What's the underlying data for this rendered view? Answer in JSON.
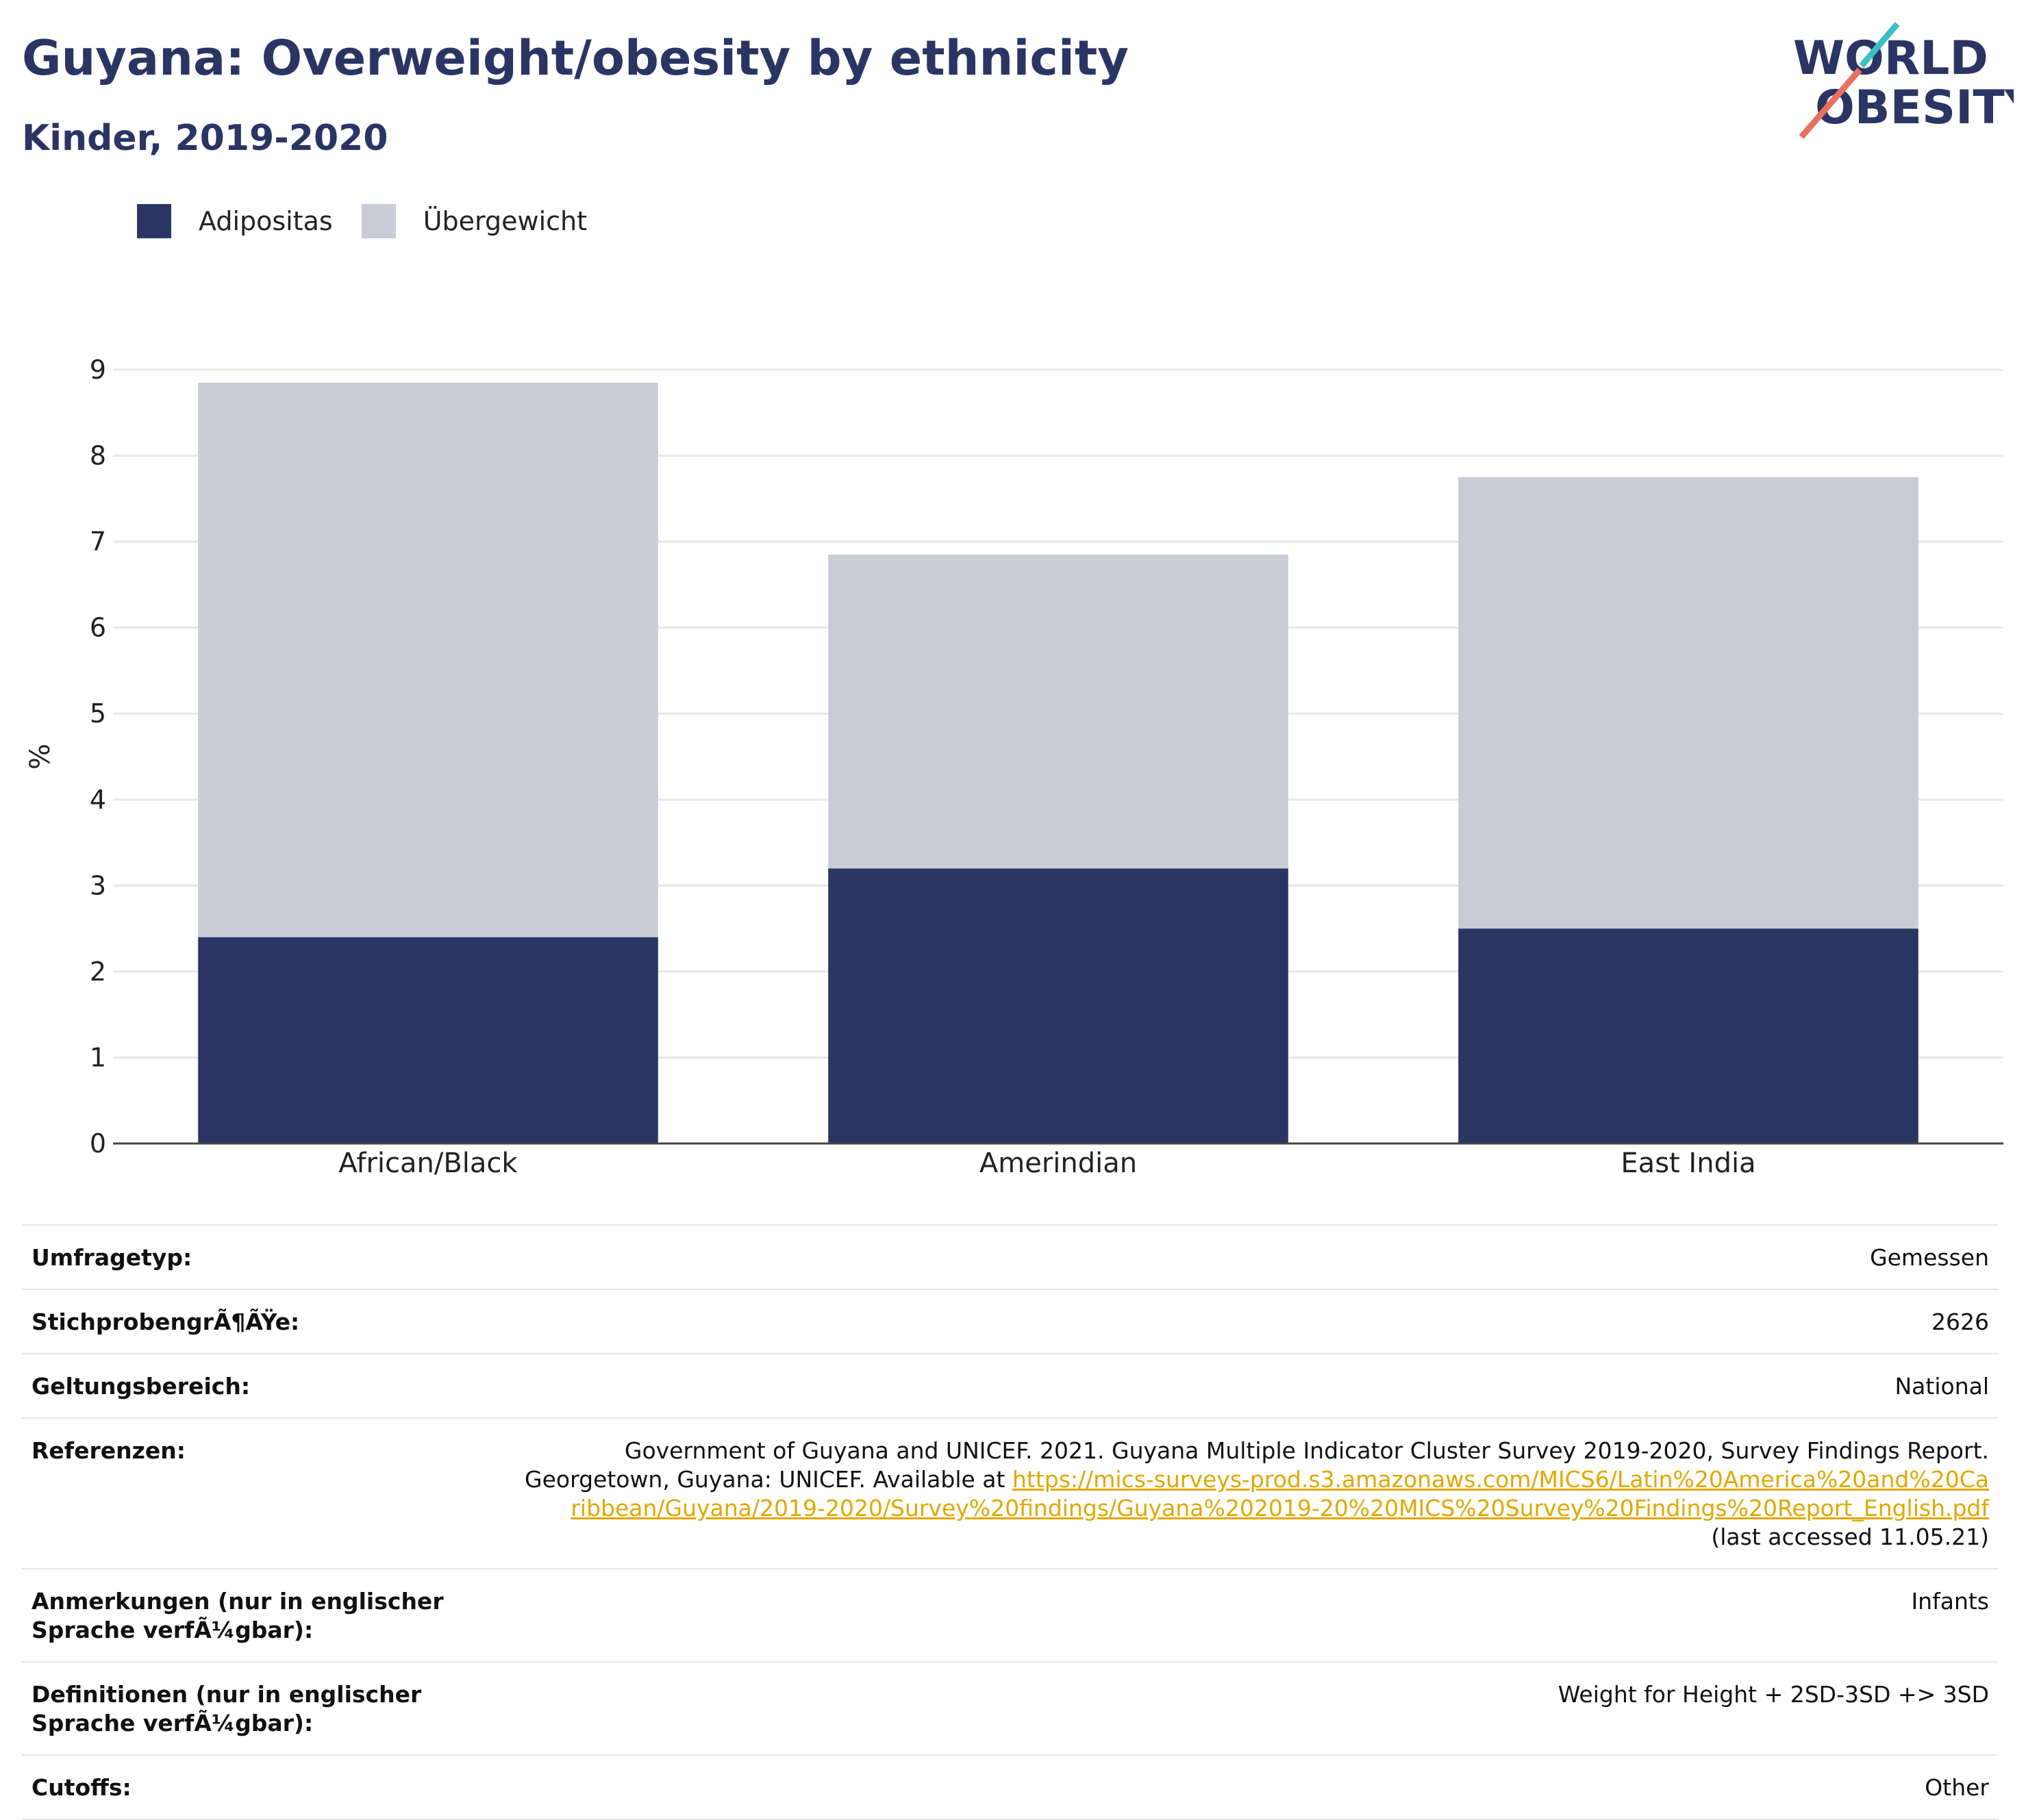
{
  "header": {
    "title": "Guyana: Overweight/obesity by ethnicity",
    "subtitle": "Kinder, 2019-2020"
  },
  "logo": {
    "line1": "WORLD",
    "line2": "OBESITY"
  },
  "legend": [
    {
      "label": "Adipositas",
      "color": "#2b3564"
    },
    {
      "label": "Übergewicht",
      "color": "#c9cbd7"
    }
  ],
  "chart_data": {
    "type": "bar",
    "stacked": true,
    "categories": [
      "African/Black",
      "Amerindian",
      "East India"
    ],
    "series": [
      {
        "name": "Adipositas",
        "values": [
          2.4,
          3.2,
          2.5
        ],
        "color": "#2b3564"
      },
      {
        "name": "Übergewicht",
        "values": [
          6.45,
          3.65,
          5.25
        ],
        "color": "#c9cbd7"
      }
    ],
    "ylabel": "%",
    "ylim": [
      0,
      9
    ],
    "yticks": [
      0,
      1,
      2,
      3,
      4,
      5,
      6,
      7,
      8,
      9
    ],
    "grid": true
  },
  "meta": {
    "rows": [
      {
        "label": "Umfragetyp:",
        "value": "Gemessen"
      },
      {
        "label": "StichprobengrÃ¶ÃŸe:",
        "value": "2626"
      },
      {
        "label": "Geltungsbereich:",
        "value": "National"
      },
      {
        "label": "Referenzen:",
        "value_pre": "Government of Guyana and UNICEF. 2021. Guyana Multiple Indicator Cluster Survey 2019-2020, Survey Findings Report. Georgetown, Guyana: UNICEF. Available at ",
        "value_link": "https://mics-surveys-prod.s3.amazonaws.com/MICS6/Latin%20America%20and%20Caribbean/Guyana/2019-2020/Survey%20findings/Guyana%202019-20%20MICS%20Survey%20Findings%20Report_English.pdf",
        "value_post": " (last accessed 11.05.21)"
      },
      {
        "label": "Anmerkungen (nur in englischer Sprache verfÃ¼gbar):",
        "value": "Infants"
      },
      {
        "label": "Definitionen (nur in englischer Sprache verfÃ¼gbar):",
        "value": "Weight for Height + 2SD-3SD +> 3SD"
      },
      {
        "label": "Cutoffs:",
        "value": "Other"
      }
    ]
  }
}
